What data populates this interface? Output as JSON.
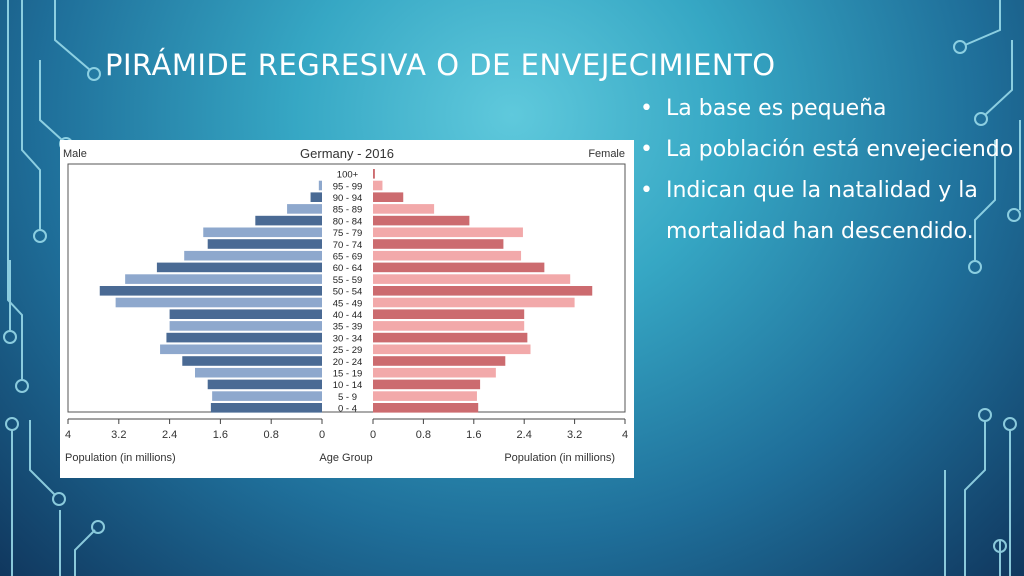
{
  "slide": {
    "title": "PIRÁMIDE REGRESIVA O DE ENVEJECIMIENTO",
    "bullets": [
      {
        "text": "La base es pequeña"
      },
      {
        "text": "La población está envejeciendo"
      },
      {
        "text": "Indican que la natalidad y la mortalidad han descendido."
      }
    ]
  },
  "chart_data": {
    "type": "bar",
    "orientation": "horizontal-pyramid",
    "title": "Germany - 2016",
    "left_label": "Male",
    "right_label": "Female",
    "xlabel_left": "Population (in millions)",
    "xlabel_center": "Age Group",
    "xlabel_right": "Population (in millions)",
    "xlim": [
      0,
      4
    ],
    "ticks_left": [
      "4",
      "3.2",
      "2.4",
      "1.6",
      "0.8",
      "0"
    ],
    "ticks_right": [
      "0",
      "0.8",
      "1.6",
      "2.4",
      "3.2",
      "4"
    ],
    "categories": [
      "100+",
      "95 - 99",
      "90 - 94",
      "85 - 89",
      "80 - 84",
      "75 - 79",
      "70 - 74",
      "65 - 69",
      "60 - 64",
      "55 - 59",
      "50 - 54",
      "45 - 49",
      "40 - 44",
      "35 - 39",
      "30 - 34",
      "25 - 29",
      "20 - 24",
      "15 - 19",
      "10 - 14",
      "5 - 9",
      "0 - 4"
    ],
    "series": [
      {
        "name": "Male",
        "values": [
          0.0,
          0.05,
          0.18,
          0.55,
          1.05,
          1.87,
          1.8,
          2.17,
          2.6,
          3.1,
          3.5,
          3.25,
          2.4,
          2.4,
          2.45,
          2.55,
          2.2,
          2.0,
          1.8,
          1.73,
          1.75
        ]
      },
      {
        "name": "Female",
        "values": [
          0.03,
          0.15,
          0.48,
          0.97,
          1.53,
          2.38,
          2.07,
          2.35,
          2.72,
          3.13,
          3.48,
          3.2,
          2.4,
          2.4,
          2.45,
          2.5,
          2.1,
          1.95,
          1.7,
          1.65,
          1.67
        ]
      }
    ],
    "colors": {
      "male_dark": "#4a6a94",
      "male_light": "#8ea8cd",
      "female_dark": "#cc6b6f",
      "female_light": "#f2a9aa"
    },
    "grid": false
  }
}
